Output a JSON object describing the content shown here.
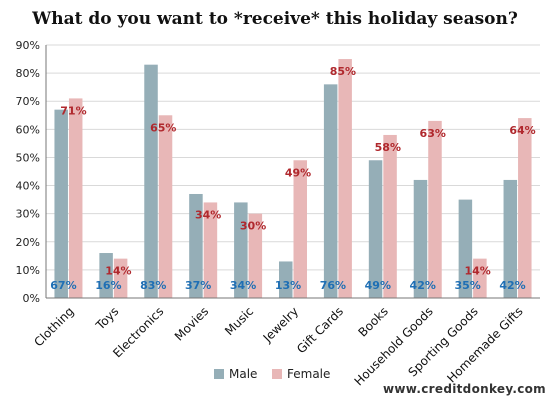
{
  "chart_data": {
    "type": "bar",
    "title": "What do you want to *receive* this holiday season?",
    "categories": [
      "Clothing",
      "Toys",
      "Electronics",
      "Movies",
      "Music",
      "Jewelry",
      "Gift Cards",
      "Books",
      "Household Goods",
      "Sporting Goods",
      "Homemade Gifts"
    ],
    "series": [
      {
        "name": "Male",
        "color": "#95aeb7",
        "values": [
          67,
          16,
          83,
          37,
          34,
          13,
          76,
          49,
          42,
          35,
          42
        ],
        "labels": [
          "67%",
          "16%",
          "83%",
          "37%",
          "34%",
          "13%",
          "76%",
          "49%",
          "42%",
          "35%",
          "42%"
        ]
      },
      {
        "name": "Female",
        "color": "#e8b7b7",
        "values": [
          71,
          14,
          65,
          34,
          30,
          49,
          85,
          58,
          63,
          14,
          64
        ],
        "labels": [
          "71%",
          "14%",
          "65%",
          "34%",
          "30%",
          "49%",
          "85%",
          "58%",
          "63%",
          "14%",
          "64%"
        ]
      }
    ],
    "ylim": [
      0,
      90
    ],
    "yticks": [
      0,
      10,
      20,
      30,
      40,
      50,
      60,
      70,
      80,
      90
    ],
    "yticklabels": [
      "0%",
      "10%",
      "20%",
      "30%",
      "40%",
      "50%",
      "60%",
      "70%",
      "80%",
      "90%"
    ],
    "grid": true,
    "legend": "bottom",
    "label_colors": {
      "Male": "#1f6fb4",
      "Female": "#b0282d"
    }
  },
  "footer": {
    "source": "www.creditdonkey.com"
  }
}
